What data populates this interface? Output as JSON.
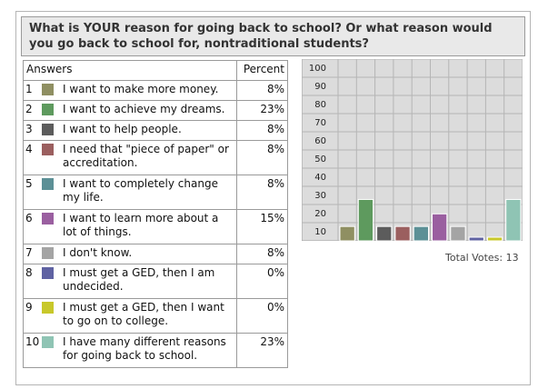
{
  "question": "What is YOUR reason for going back to school? Or what reason would you go back to school for, nontraditional students?",
  "table": {
    "header_answers": "Answers",
    "header_percent": "Percent",
    "rows": [
      {
        "num": "1",
        "label": "I want to make more money.",
        "percent": "8%",
        "color": "#8f8f62"
      },
      {
        "num": "2",
        "label": "I want to achieve my dreams.",
        "percent": "23%",
        "color": "#5e9a5e"
      },
      {
        "num": "3",
        "label": "I want to help people.",
        "percent": "8%",
        "color": "#5c5c5c"
      },
      {
        "num": "4",
        "label": "I need that \"piece of paper\" or accreditation.",
        "percent": "8%",
        "color": "#9b5f5f"
      },
      {
        "num": "5",
        "label": "I want to completely change my life.",
        "percent": "8%",
        "color": "#5c9096"
      },
      {
        "num": "6",
        "label": "I want to learn more about a lot of things.",
        "percent": "15%",
        "color": "#9a5fa0"
      },
      {
        "num": "7",
        "label": "I don't know.",
        "percent": "8%",
        "color": "#a4a4a4"
      },
      {
        "num": "8",
        "label": "I must get a GED, then I am undecided.",
        "percent": "0%",
        "color": "#5f62a2"
      },
      {
        "num": "9",
        "label": "I must get a GED, then I want to go on to college.",
        "percent": "0%",
        "color": "#c8c82a"
      },
      {
        "num": "10",
        "label": "I have many different reasons for going back to school.",
        "percent": "23%",
        "color": "#8fc4b4"
      }
    ]
  },
  "total_votes": "Total Votes: 13",
  "chart_data": {
    "type": "bar",
    "categories": [
      "1",
      "2",
      "3",
      "4",
      "5",
      "6",
      "7",
      "8",
      "9",
      "10"
    ],
    "values": [
      8,
      23,
      8,
      8,
      8,
      15,
      8,
      0,
      0,
      23
    ],
    "ylim": [
      0,
      100
    ],
    "yticks": [
      "100",
      "90",
      "80",
      "70",
      "60",
      "50",
      "40",
      "30",
      "20",
      "10"
    ],
    "grid": true,
    "background": "#dcdcdc"
  }
}
